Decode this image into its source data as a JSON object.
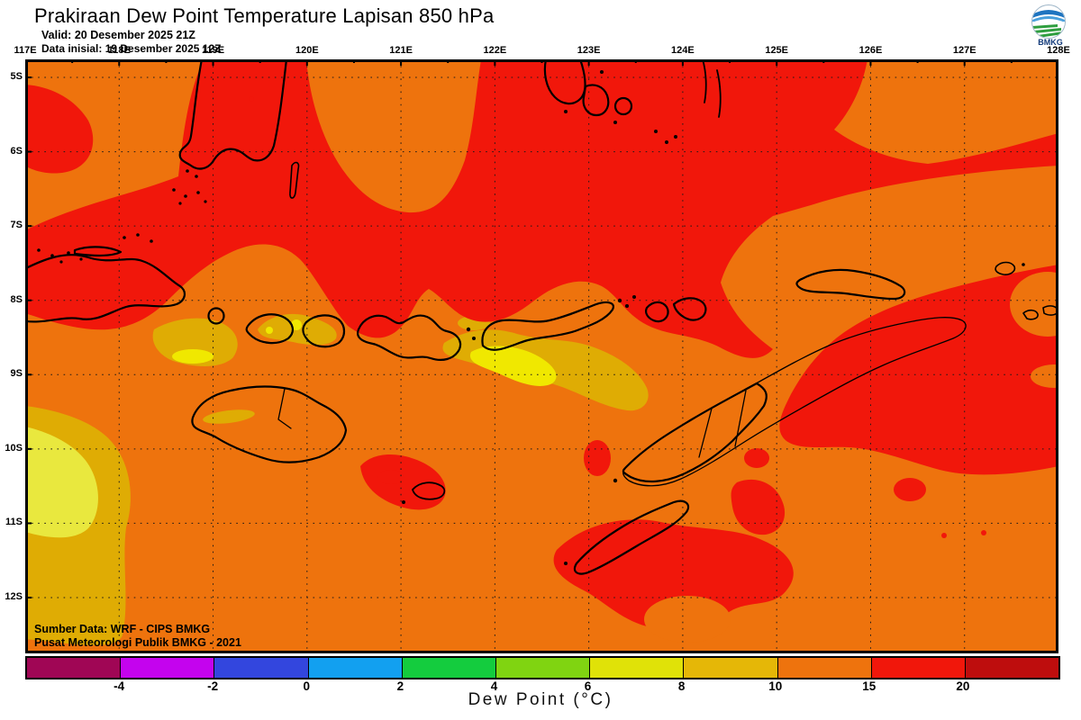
{
  "header": {
    "title": "Prakiraan Dew Point Temperature Lapisan 850 hPa",
    "valid_line": "Valid: 20 Desember 2025 21Z",
    "init_line": "Data inisial: 19 Desember 2025 12Z"
  },
  "logo": {
    "label": "BMKG"
  },
  "axes": {
    "lon_labels": [
      "117E",
      "118E",
      "119E",
      "120E",
      "121E",
      "122E",
      "123E",
      "124E",
      "125E",
      "126E",
      "127E",
      "128E"
    ],
    "lat_labels": [
      "5S",
      "6S",
      "7S",
      "8S",
      "9S",
      "10S",
      "11S",
      "12S"
    ]
  },
  "colorbar": {
    "title": "Dew Point (°C)",
    "tick_labels": [
      "-4",
      "-2",
      "0",
      "2",
      "4",
      "6",
      "8",
      "10",
      "15",
      "20"
    ],
    "segment_colors": [
      "#A00655",
      "#C403EE",
      "#3346DE",
      "#12A0F0",
      "#14CC3E",
      "#80D411",
      "#E0E208",
      "#E5B707",
      "#EE730D",
      "#F1170B",
      "#BE0D0D"
    ],
    "scale_note": "11 segments, boundaries at -4,-2,0,2,4,6,8,10,15,20"
  },
  "credits": {
    "line1": "Sumber Data: WRF - CIPS BMKG",
    "line2": "Pusat Meteorologi Publik BMKG - 2021"
  },
  "map_colors": {
    "orange": "#EE730D",
    "red": "#F1170B",
    "gold": "#DFAC04",
    "yellow": "#F0E800",
    "softyellow": "#E9E83E",
    "coast": "#000000"
  }
}
